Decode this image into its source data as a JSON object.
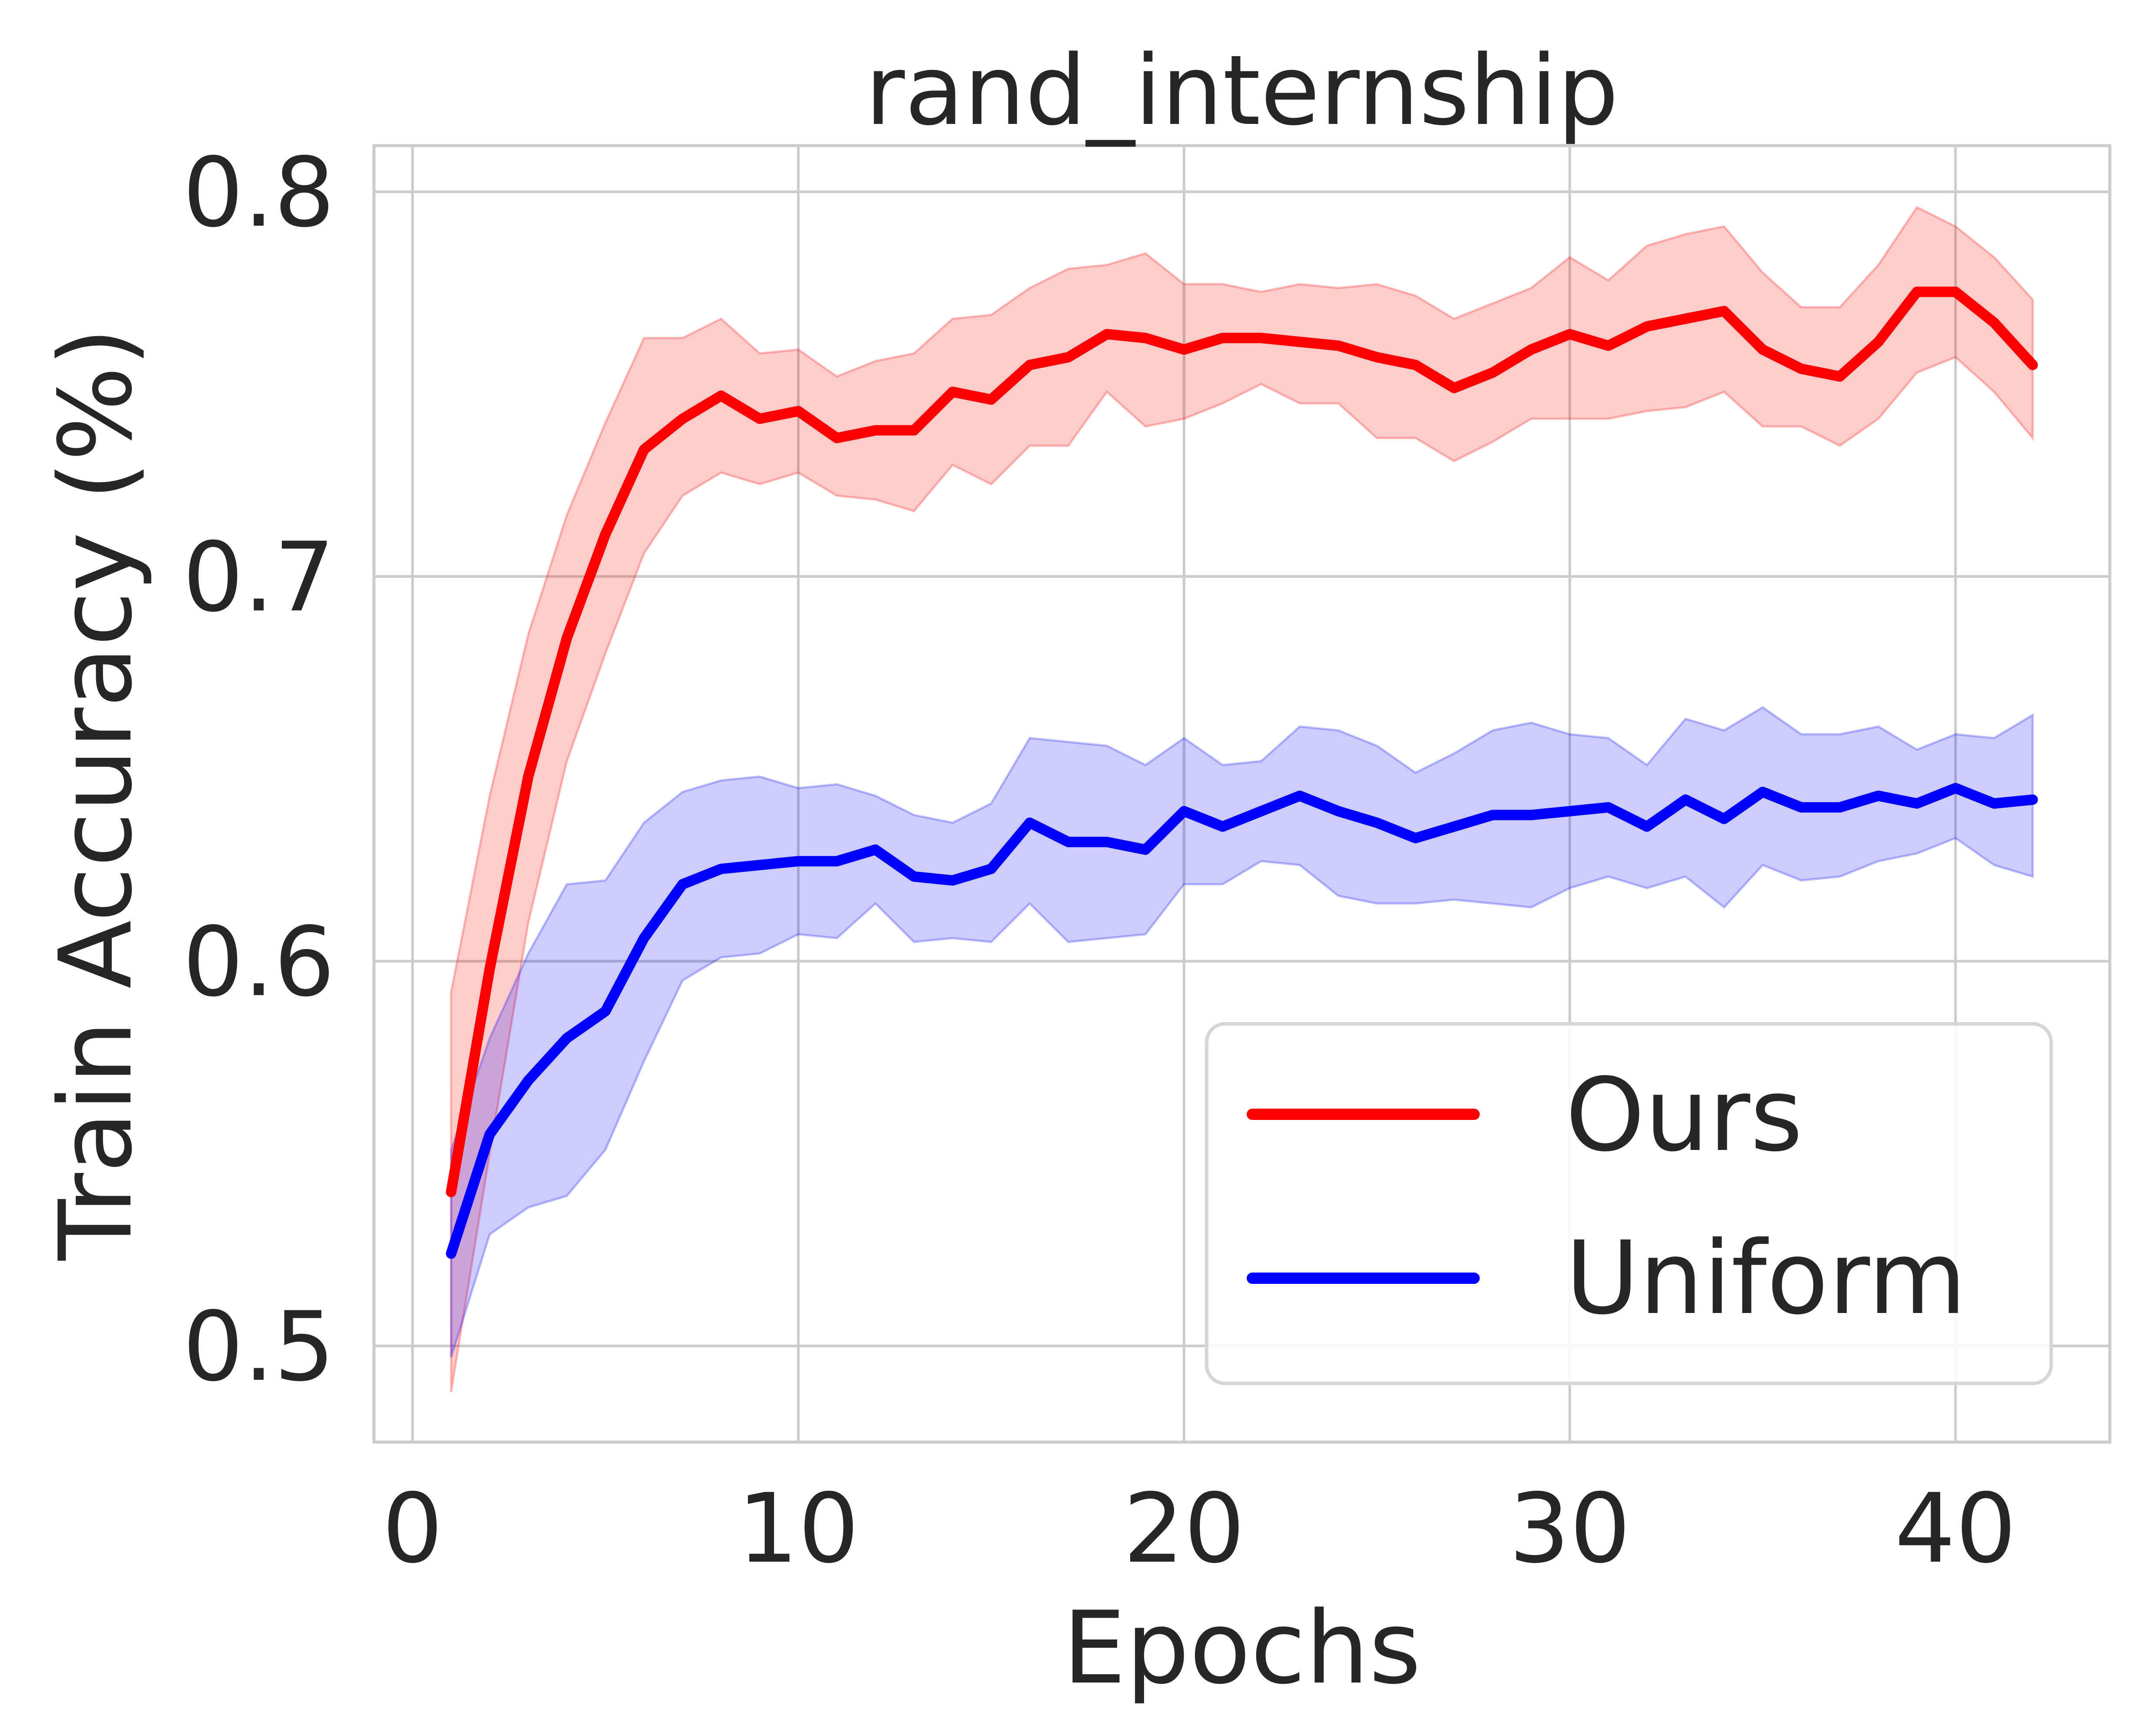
{
  "chart_data": {
    "type": "line",
    "title": "rand_internship",
    "xlabel": "Epochs",
    "ylabel": "Train Accuracy (%)",
    "xlim": [
      -1,
      44
    ],
    "ylim": [
      0.475,
      0.812
    ],
    "xticks": [
      0,
      10,
      20,
      30,
      40
    ],
    "yticks": [
      0.5,
      0.6,
      0.7,
      0.8
    ],
    "xtick_labels": [
      "0",
      "10",
      "20",
      "30",
      "40"
    ],
    "ytick_labels": [
      "0.5",
      "0.6",
      "0.7",
      "0.8"
    ],
    "grid": true,
    "legend_position": "lower-right",
    "x": [
      1,
      2,
      3,
      4,
      5,
      6,
      7,
      8,
      9,
      10,
      11,
      12,
      13,
      14,
      15,
      16,
      17,
      18,
      19,
      20,
      21,
      22,
      23,
      24,
      25,
      26,
      27,
      28,
      29,
      30,
      31,
      32,
      33,
      34,
      35,
      36,
      37,
      38,
      39,
      40,
      41,
      42
    ],
    "series": [
      {
        "name": "Ours",
        "color": "#ff0000",
        "band_color": "#ff0000",
        "values": [
          0.54,
          0.598,
          0.648,
          0.684,
          0.711,
          0.733,
          0.741,
          0.747,
          0.741,
          0.743,
          0.736,
          0.738,
          0.738,
          0.748,
          0.746,
          0.755,
          0.757,
          0.763,
          0.762,
          0.759,
          0.762,
          0.762,
          0.761,
          0.76,
          0.757,
          0.755,
          0.749,
          0.753,
          0.759,
          0.763,
          0.76,
          0.765,
          0.767,
          0.769,
          0.759,
          0.754,
          0.752,
          0.761,
          0.774,
          0.774,
          0.766,
          0.755
        ],
        "lower": [
          0.488,
          0.55,
          0.61,
          0.652,
          0.68,
          0.706,
          0.721,
          0.727,
          0.724,
          0.727,
          0.721,
          0.72,
          0.717,
          0.729,
          0.724,
          0.734,
          0.734,
          0.748,
          0.739,
          0.741,
          0.745,
          0.75,
          0.745,
          0.745,
          0.736,
          0.736,
          0.73,
          0.735,
          0.741,
          0.741,
          0.741,
          0.743,
          0.744,
          0.748,
          0.739,
          0.739,
          0.734,
          0.741,
          0.753,
          0.757,
          0.748,
          0.736
        ],
        "upper": [
          0.592,
          0.643,
          0.685,
          0.716,
          0.74,
          0.762,
          0.762,
          0.767,
          0.758,
          0.759,
          0.752,
          0.756,
          0.758,
          0.767,
          0.768,
          0.775,
          0.78,
          0.781,
          0.784,
          0.776,
          0.776,
          0.774,
          0.776,
          0.775,
          0.776,
          0.773,
          0.767,
          0.771,
          0.775,
          0.783,
          0.777,
          0.786,
          0.789,
          0.791,
          0.779,
          0.77,
          0.77,
          0.781,
          0.796,
          0.791,
          0.783,
          0.772
        ]
      },
      {
        "name": "Uniform",
        "color": "#0000ff",
        "band_color": "#0000ff",
        "values": [
          0.524,
          0.555,
          0.569,
          0.58,
          0.587,
          0.606,
          0.62,
          0.624,
          0.625,
          0.626,
          0.626,
          0.629,
          0.622,
          0.621,
          0.624,
          0.636,
          0.631,
          0.631,
          0.629,
          0.639,
          0.635,
          0.639,
          0.643,
          0.639,
          0.636,
          0.632,
          0.635,
          0.638,
          0.638,
          0.639,
          0.64,
          0.635,
          0.642,
          0.637,
          0.644,
          0.64,
          0.64,
          0.643,
          0.641,
          0.645,
          0.641,
          0.642
        ],
        "lower": [
          0.497,
          0.529,
          0.536,
          0.539,
          0.551,
          0.574,
          0.595,
          0.601,
          0.602,
          0.607,
          0.606,
          0.615,
          0.605,
          0.606,
          0.605,
          0.615,
          0.605,
          0.606,
          0.607,
          0.62,
          0.62,
          0.626,
          0.625,
          0.617,
          0.615,
          0.615,
          0.616,
          0.615,
          0.614,
          0.619,
          0.622,
          0.619,
          0.622,
          0.614,
          0.625,
          0.621,
          0.622,
          0.626,
          0.628,
          0.632,
          0.625,
          0.622
        ],
        "upper": [
          0.551,
          0.58,
          0.602,
          0.62,
          0.621,
          0.636,
          0.644,
          0.647,
          0.648,
          0.645,
          0.646,
          0.643,
          0.638,
          0.636,
          0.641,
          0.658,
          0.657,
          0.656,
          0.651,
          0.658,
          0.651,
          0.652,
          0.661,
          0.66,
          0.656,
          0.649,
          0.654,
          0.66,
          0.662,
          0.659,
          0.658,
          0.651,
          0.663,
          0.66,
          0.666,
          0.659,
          0.659,
          0.661,
          0.655,
          0.659,
          0.658,
          0.664
        ]
      }
    ]
  }
}
